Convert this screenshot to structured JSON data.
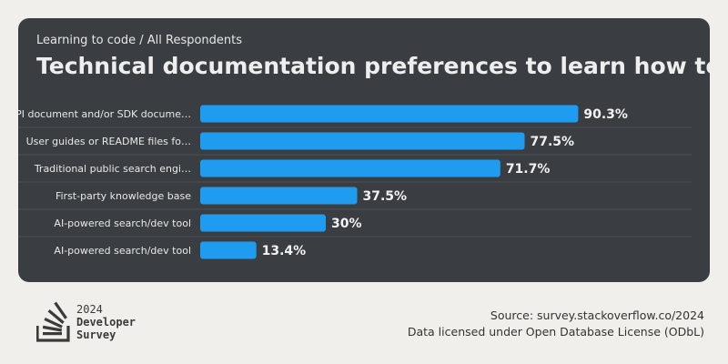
{
  "header": {
    "breadcrumb": "Learning to code / All Respondents",
    "title": "Technical documentation preferences to learn how to code"
  },
  "brand": {
    "year": "2024",
    "line1": "Developer",
    "line2": "Survey"
  },
  "footer": {
    "source": "Source: survey.stackoverflow.co/2024",
    "license": "Data licensed under Open Database License (ODbL)"
  },
  "colors": {
    "bar": "#1f9cf0",
    "card": "#3a3e42",
    "background": "#f0efeb"
  },
  "chart_data": {
    "type": "bar",
    "orientation": "horizontal",
    "categories": [
      "API document and/or SDK docume…",
      "User guides or README files fo…",
      "Traditional public search engi…",
      "First-party knowledge base",
      "AI-powered search/dev tool",
      "AI-powered search/dev tool"
    ],
    "values": [
      90.3,
      77.5,
      71.7,
      37.5,
      30,
      13.4
    ],
    "value_labels": [
      "90.3%",
      "77.5%",
      "71.7%",
      "37.5%",
      "30%",
      "13.4%"
    ],
    "xlim": [
      0,
      100
    ],
    "grid": false
  }
}
